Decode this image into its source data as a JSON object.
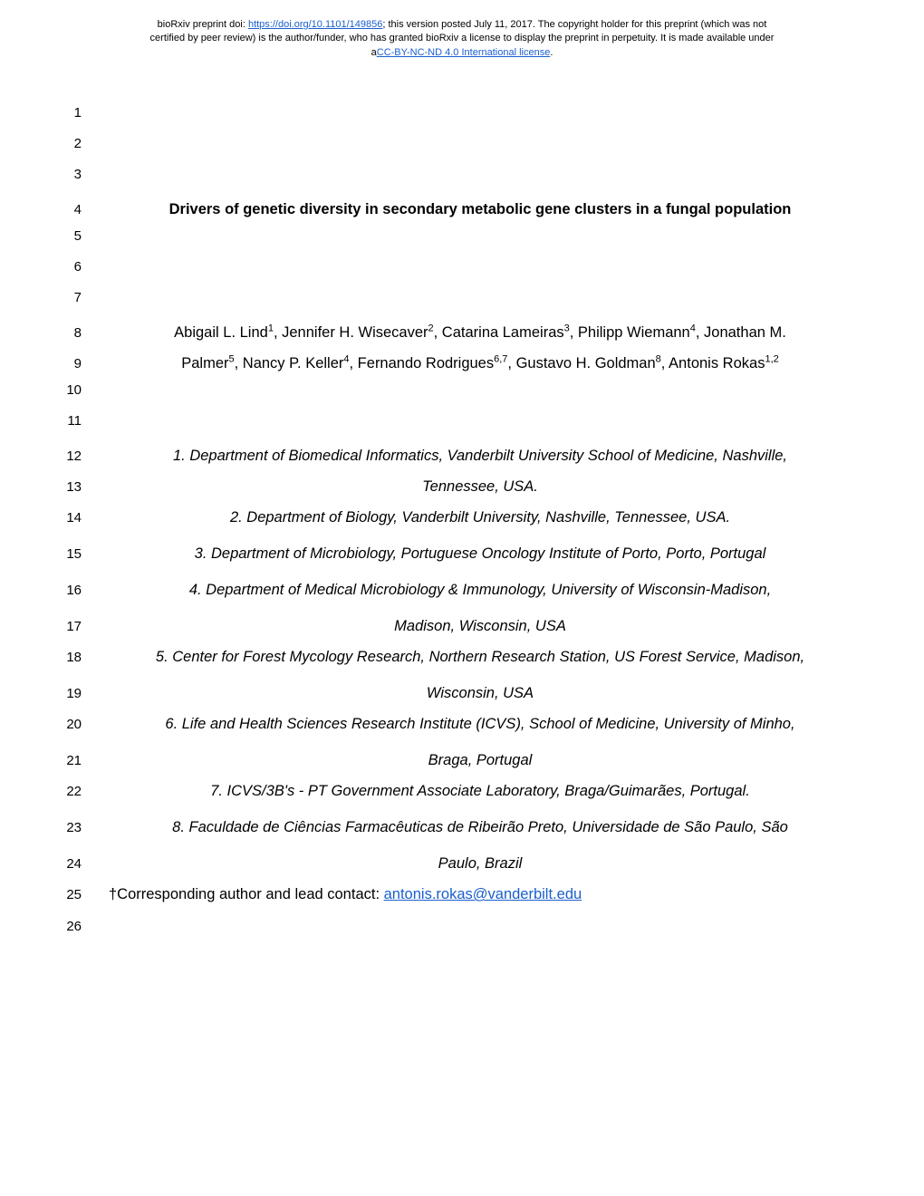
{
  "header": {
    "line1_prefix": "bioRxiv preprint doi: ",
    "doi_url": "https://doi.org/10.1101/149856",
    "line1_suffix": "; this version posted July 11, 2017. The copyright holder for this preprint (which was not",
    "line2": "certified by peer review) is the author/funder, who has granted bioRxiv a license to display the preprint in perpetuity. It is made available under",
    "line3_prefix": "a",
    "license_text": "CC-BY-NC-ND 4.0 International license",
    "line3_suffix": "."
  },
  "lines": {
    "4": "Drivers of genetic diversity in secondary metabolic gene clusters in a fungal population",
    "8_part1": "Abigail L. Lind",
    "8_sup1": "1",
    "8_part2": ", Jennifer H. Wisecaver",
    "8_sup2": "2",
    "8_part3": ", Catarina Lameiras",
    "8_sup3": "3",
    "8_part4": ", Philipp Wiemann",
    "8_sup4": "4",
    "8_part5": ", Jonathan M.",
    "9_part1": "Palmer",
    "9_sup1": "5",
    "9_part2": ", Nancy P. Keller",
    "9_sup2": "4",
    "9_part3": ", Fernando Rodrigues",
    "9_sup3": "6,7",
    "9_part4": ", Gustavo H. Goldman",
    "9_sup4": "8",
    "9_part5": ", Antonis Rokas",
    "9_sup5": "1,2",
    "12": "1. Department of Biomedical Informatics, Vanderbilt University School of Medicine, Nashville,",
    "13": "Tennessee, USA.",
    "14": "2. Department of Biology, Vanderbilt University, Nashville, Tennessee, USA.",
    "15": "3. Department of Microbiology, Portuguese Oncology Institute of Porto, Porto, Portugal",
    "16": "4. Department of Medical Microbiology & Immunology, University of Wisconsin-Madison,",
    "17": "Madison, Wisconsin, USA",
    "18": "5. Center for Forest Mycology Research, Northern Research Station, US Forest Service, Madison,",
    "19": "Wisconsin, USA",
    "20": "6. Life and Health Sciences Research Institute (ICVS), School of Medicine, University of Minho,",
    "21": "Braga, Portugal",
    "22": "7. ICVS/3B's - PT Government Associate Laboratory, Braga/Guimarães, Portugal.",
    "23": "8. Faculdade de Ciências Farmacêuticas de Ribeirão Preto, Universidade de São Paulo, São",
    "24": "Paulo, Brazil",
    "25_prefix": "†Corresponding author and lead contact: ",
    "25_email": "antonis.rokas@vanderbilt.edu"
  },
  "line_numbers": [
    "1",
    "2",
    "3",
    "4",
    "5",
    "6",
    "7",
    "8",
    "9",
    "10",
    "11",
    "12",
    "13",
    "14",
    "15",
    "16",
    "17",
    "18",
    "19",
    "20",
    "21",
    "22",
    "23",
    "24",
    "25",
    "26"
  ],
  "colors": {
    "link_color": "#1a5fce",
    "text_color": "#000000",
    "background": "#ffffff"
  },
  "typography": {
    "body_font": "Arial, Helvetica, sans-serif",
    "line_number_size": 15,
    "body_text_size": 16.5,
    "header_size": 11,
    "sup_size": 11
  }
}
